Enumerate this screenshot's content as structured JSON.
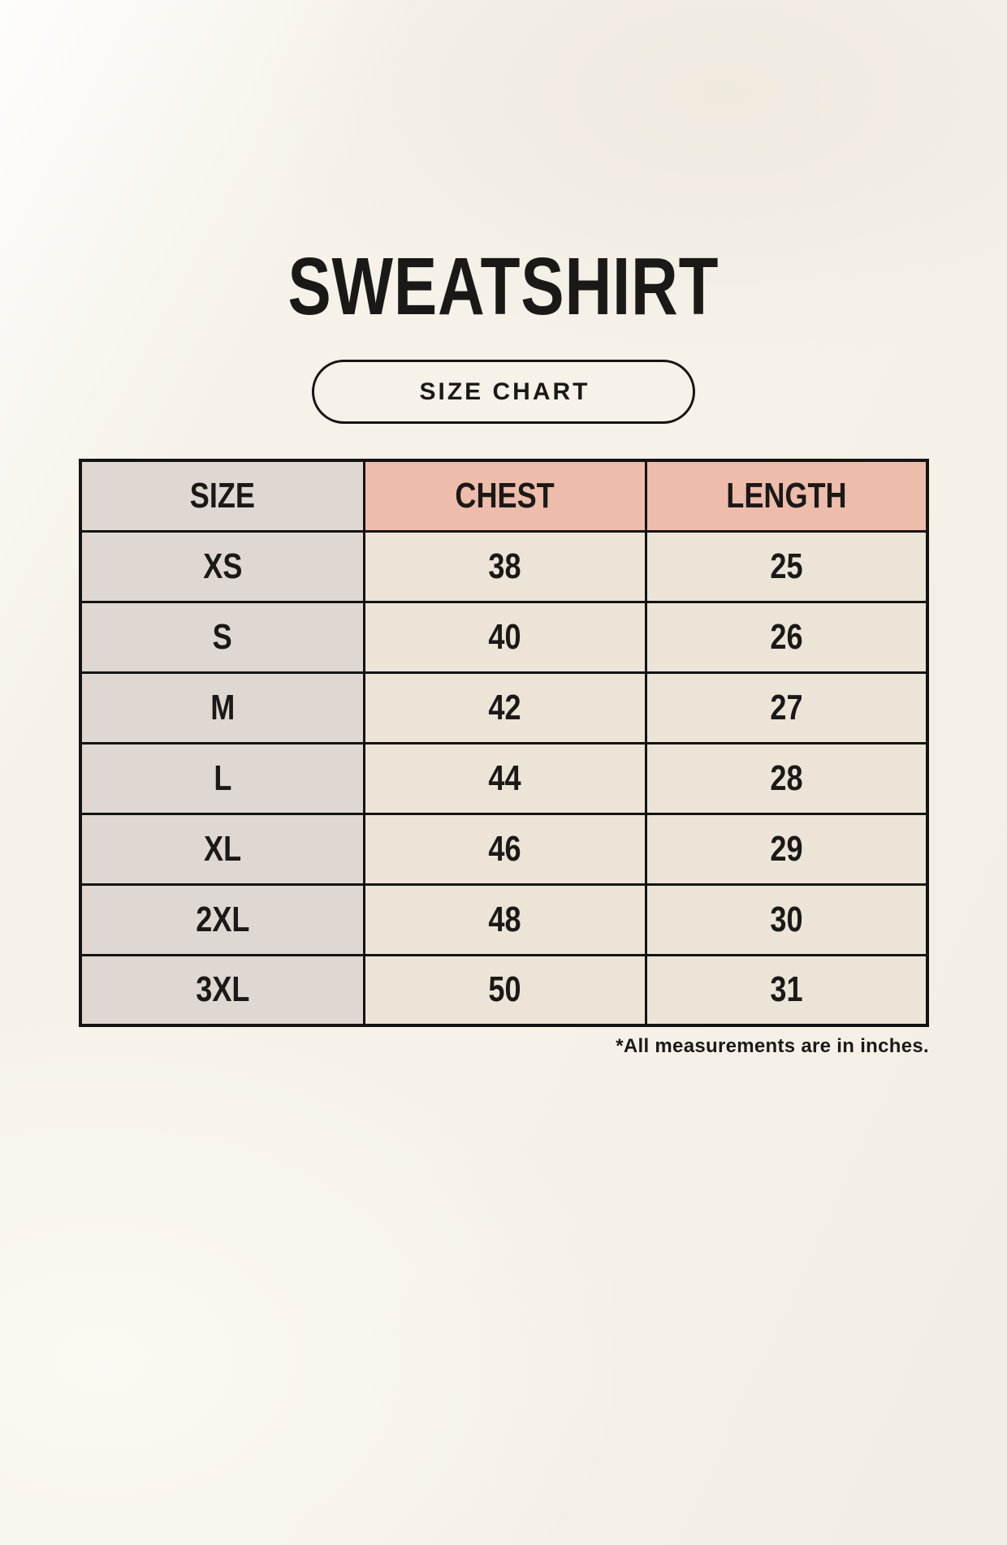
{
  "page": {
    "title": "SWEATSHIRT",
    "size_chart_button": "SIZE CHART",
    "footnote": "*All measurements are in inches."
  },
  "colors": {
    "page_background": "#f6f2e9",
    "size_column_bg": "#ded7d2",
    "header_accent_bg": "#eebcab",
    "data_cell_bg": "#ebe4d7",
    "table_border": "#141312",
    "text": "#1b1918"
  },
  "chart_data": {
    "type": "table",
    "title": "SWEATSHIRT",
    "subtitle": "SIZE CHART",
    "columns": [
      "SIZE",
      "CHEST",
      "LENGTH"
    ],
    "rows": [
      {
        "size": "XS",
        "chest": "38",
        "length": "25"
      },
      {
        "size": "S",
        "chest": "40",
        "length": "26"
      },
      {
        "size": "M",
        "chest": "42",
        "length": "27"
      },
      {
        "size": "L",
        "chest": "44",
        "length": "28"
      },
      {
        "size": "XL",
        "chest": "46",
        "length": "29"
      },
      {
        "size": "2XL",
        "chest": "48",
        "length": "30"
      },
      {
        "size": "3XL",
        "chest": "50",
        "length": "31"
      }
    ],
    "units": "inches",
    "note": "*All measurements are in inches."
  }
}
